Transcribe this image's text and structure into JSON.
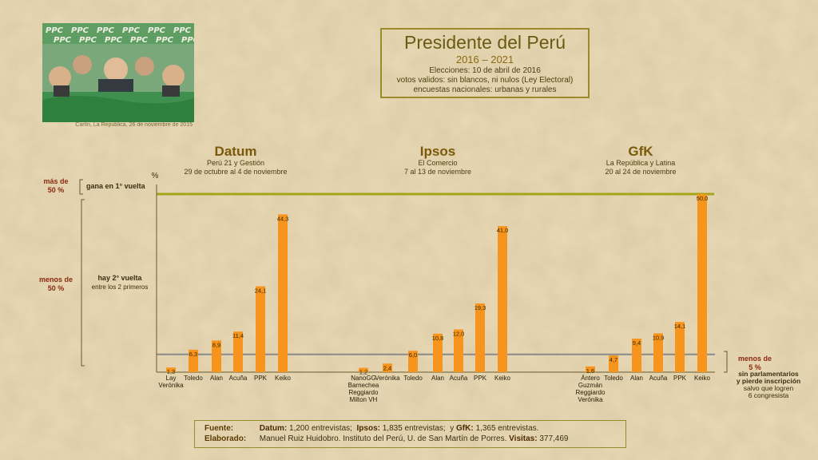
{
  "title": {
    "main": "Presidente del Perú",
    "period": "2016 – 2021",
    "line1": "Elecciones: 10 de abril de 2016",
    "line2": "votos validos: sin blancos, ni nulos (Ley Electoral)",
    "line3": "encuestas  nacionales:  urbanas y rurales"
  },
  "cartoon": {
    "banner": "PPC",
    "caption": "Carlín, La República, 26 de noviembre de 2015"
  },
  "pollsters": [
    {
      "name": "Datum",
      "source": "Perú 21 y Gestión",
      "dates": "29 de octubre al 4 de noviembre"
    },
    {
      "name": "Ipsos",
      "source": "El Comercio",
      "dates": "7 al 13 de noviembre"
    },
    {
      "name": "GfK",
      "source": "La República y Latina",
      "dates": "20 al 24 de noviembre"
    }
  ],
  "annotations": {
    "mas_de_a": "más de",
    "mas_de_b": "50 %",
    "gana": "gana en 1° vuelta",
    "menos_a": "menos de",
    "menos_b": "50 %",
    "hay_a": "hay 2° vuelta",
    "hay_b": "entre los 2 primeros",
    "menos5_a": "menos de",
    "menos5_b": "5 %",
    "sin_a": "sin parlamentarios",
    "sin_b": "y pierde inscripción",
    "sin_c": "salvo  que logren",
    "sin_d": "6 congresista"
  },
  "footer": {
    "fuente_label": "Fuente:",
    "datum_label": "Datum:",
    "datum_text": "1,200 entrevistas;",
    "ipsos_label": "Ipsos:",
    "ipsos_text": "1,835 entrevistas;",
    "gfk_pre": "y",
    "gfk_label": "GfK:",
    "gfk_text": "1,365 entrevistas.",
    "elab_label": "Elaborado:",
    "elab_text": "Manuel Ruiz Huidobro. Instituto del Perú, U. de San Martín de Porres.",
    "visitas_label": "Visitas:",
    "visitas_text": "377,469"
  },
  "colors": {
    "bar": "#f7941d",
    "threshold50": "#a8a41a",
    "threshold5": "#8a8a8a",
    "axis": "#6a5a2a"
  },
  "chart_data": {
    "type": "bar",
    "ylabel": "%",
    "ylim": [
      0,
      50
    ],
    "thresholds": [
      50,
      5
    ],
    "groups": [
      {
        "name": "Datum",
        "bars": [
          {
            "label": [
              "Lay",
              "Verónika"
            ],
            "value": 1.3,
            "text": "1,3"
          },
          {
            "label": [
              "Toledo"
            ],
            "value": 6.3,
            "text": "6,3"
          },
          {
            "label": [
              "Alan"
            ],
            "value": 8.9,
            "text": "8,9"
          },
          {
            "label": [
              "Acuña"
            ],
            "value": 11.4,
            "text": "11,4"
          },
          {
            "label": [
              "PPK"
            ],
            "value": 24.1,
            "text": "24,1"
          },
          {
            "label": [
              "Keiko"
            ],
            "value": 44.3,
            "text": "44,3"
          }
        ]
      },
      {
        "name": "Ipsos",
        "bars": [
          {
            "label": [
              "NanoGG",
              "Barnechea",
              "Reggiardo",
              "Milton VH"
            ],
            "value": 1.2,
            "text": "1,2"
          },
          {
            "label": [
              "Verónika"
            ],
            "value": 2.4,
            "text": "2,4"
          },
          {
            "label": [
              "Toledo"
            ],
            "value": 6.0,
            "text": "6,0"
          },
          {
            "label": [
              "Alan"
            ],
            "value": 10.8,
            "text": "10,8"
          },
          {
            "label": [
              "Acuña"
            ],
            "value": 12.0,
            "text": "12,0"
          },
          {
            "label": [
              "PPK"
            ],
            "value": 19.3,
            "text": "19,3"
          },
          {
            "label": [
              "Keiko"
            ],
            "value": 41.0,
            "text": "41,0"
          }
        ]
      },
      {
        "name": "GfK",
        "bars": [
          {
            "label": [
              "Ántero",
              "Guzmán",
              "Reggiardo",
              "Verónika"
            ],
            "value": 1.6,
            "text": "1,6"
          },
          {
            "label": [
              "Toledo"
            ],
            "value": 4.7,
            "text": "4,7"
          },
          {
            "label": [
              "Alan"
            ],
            "value": 9.4,
            "text": "9,4"
          },
          {
            "label": [
              "Acuña"
            ],
            "value": 10.9,
            "text": "10,9"
          },
          {
            "label": [
              "PPK"
            ],
            "value": 14.1,
            "text": "14,1"
          },
          {
            "label": [
              "Keiko"
            ],
            "value": 50.0,
            "text": "50,0"
          }
        ]
      }
    ]
  }
}
